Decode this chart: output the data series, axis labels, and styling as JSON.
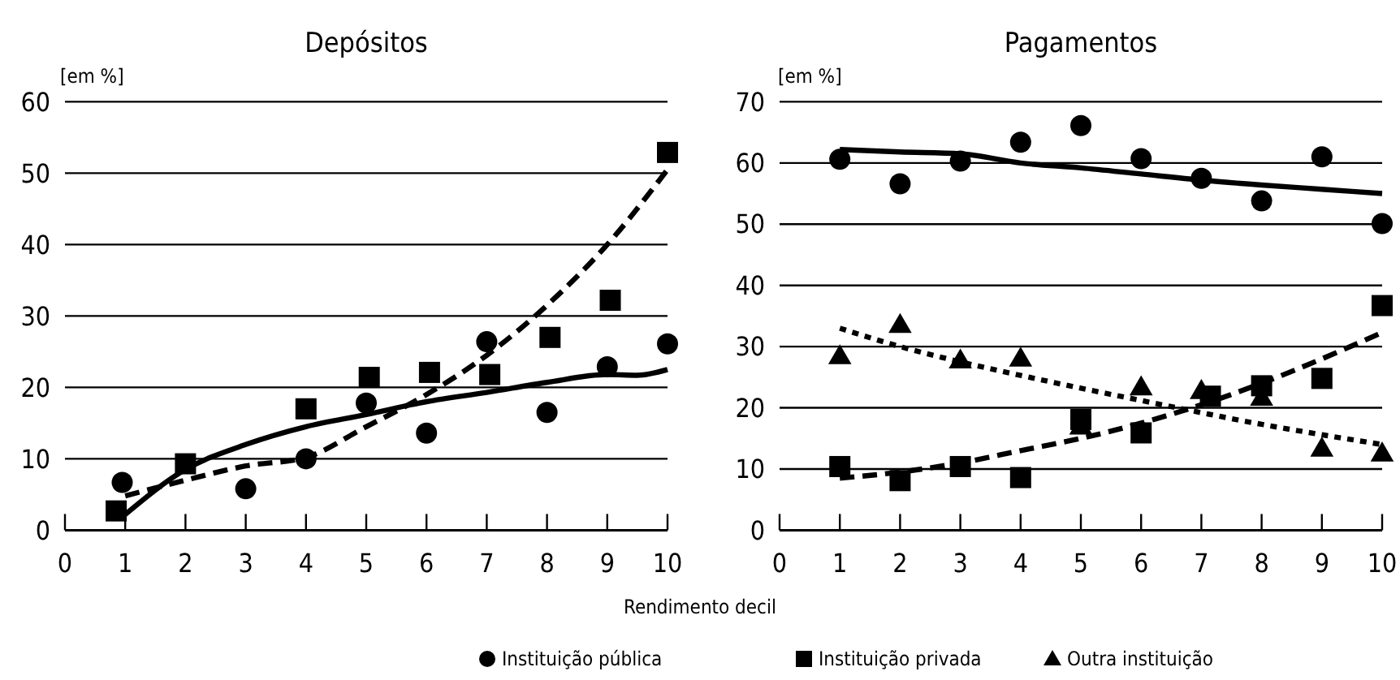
{
  "chart_data": [
    {
      "type": "scatter",
      "title": "Depósitos",
      "ylabel": "[em %]",
      "xlabel": "Rendimento decil",
      "xlim": [
        0,
        10
      ],
      "xticks": [
        0,
        1,
        2,
        3,
        4,
        5,
        6,
        7,
        8,
        9,
        10
      ],
      "ylim": [
        0,
        60
      ],
      "yticks": [
        0,
        10,
        20,
        30,
        40,
        50,
        60
      ],
      "grid": "y",
      "legend": false,
      "series": [
        {
          "color": "#000000",
          "marker": "circle",
          "x": [
            0.95,
            3,
            4,
            5,
            6,
            7,
            8,
            9,
            10
          ],
          "values": [
            6.7,
            5.8,
            10,
            17.8,
            13.6,
            26.4,
            16.5,
            22.9,
            26.1
          ]
        },
        {
          "color": "#000000",
          "marker": "square",
          "x": [
            0.85,
            2,
            4,
            5.05,
            6.05,
            7.05,
            8.05,
            9.05,
            10
          ],
          "values": [
            2.7,
            9.3,
            17,
            21.4,
            22.1,
            21.8,
            27,
            32.2,
            52.9
          ]
        },
        {
          "type": "line",
          "color": "#000000",
          "line_style": "solid",
          "x": [
            1,
            2,
            3,
            4,
            5,
            6,
            7,
            8,
            9,
            9.5,
            10
          ],
          "values": [
            2.2,
            8.5,
            12,
            14.5,
            16.2,
            18,
            19.3,
            20.7,
            21.8,
            21.7,
            22.5
          ]
        },
        {
          "type": "line",
          "color": "#000000",
          "line_style": "dashed",
          "x": [
            1,
            2,
            3,
            4,
            5,
            6,
            7,
            8,
            9,
            10
          ],
          "values": [
            4.8,
            7,
            9,
            10.2,
            14.5,
            19,
            24.5,
            31.5,
            40,
            50.5
          ]
        }
      ]
    },
    {
      "type": "scatter",
      "title": "Pagamentos",
      "ylabel": "[em %]",
      "xlim": [
        0,
        10
      ],
      "xticks": [
        0,
        1,
        2,
        3,
        4,
        5,
        6,
        7,
        8,
        9,
        10
      ],
      "ylim": [
        0,
        70
      ],
      "yticks": [
        0,
        10,
        20,
        30,
        40,
        50,
        60,
        70
      ],
      "grid": "y",
      "legend": "bottom",
      "series": [
        {
          "name": "Instituição pública",
          "color": "#000000",
          "marker": "circle",
          "x": [
            1,
            2,
            3,
            4,
            5,
            6,
            7,
            8,
            9,
            10
          ],
          "values": [
            60.6,
            56.6,
            60.3,
            63.4,
            66.1,
            60.7,
            57.5,
            53.8,
            61,
            50.1
          ]
        },
        {
          "name": "Instituição privada",
          "color": "#000000",
          "marker": "square",
          "x": [
            1,
            2,
            3,
            4,
            5,
            6,
            7.15,
            8,
            9,
            10
          ],
          "values": [
            10.4,
            8.1,
            10.4,
            8.6,
            18.1,
            15.9,
            21.9,
            23.6,
            24.8,
            36.7
          ]
        },
        {
          "name": "Outra instituição",
          "color": "#000000",
          "marker": "triangle",
          "x": [
            1,
            2,
            3,
            4,
            5,
            6,
            7,
            8,
            9,
            10
          ],
          "values": [
            28.5,
            33.6,
            27.8,
            28.1,
            17,
            23.4,
            22.8,
            21.7,
            13.4,
            12.6
          ]
        },
        {
          "type": "line",
          "color": "#000000",
          "line_style": "solid",
          "x": [
            1,
            2,
            3,
            4,
            5,
            6,
            7,
            8,
            9,
            10
          ],
          "values": [
            62.2,
            61.8,
            61.5,
            60,
            59.2,
            58.2,
            57.2,
            56.4,
            55.7,
            55
          ]
        },
        {
          "type": "line",
          "color": "#000000",
          "line_style": "dashed",
          "x": [
            1,
            2,
            3,
            4,
            5,
            6,
            7,
            8,
            9,
            10
          ],
          "values": [
            8.5,
            9.5,
            11,
            13,
            15,
            17.5,
            20.5,
            24,
            28,
            32.3
          ]
        },
        {
          "type": "line",
          "color": "#000000",
          "line_style": "dotted",
          "x": [
            1,
            2,
            3,
            4,
            5,
            6,
            7,
            8,
            9,
            10
          ],
          "values": [
            33,
            30,
            27.5,
            25.3,
            23.2,
            21.2,
            19.2,
            17.3,
            15.6,
            14
          ]
        }
      ]
    }
  ]
}
